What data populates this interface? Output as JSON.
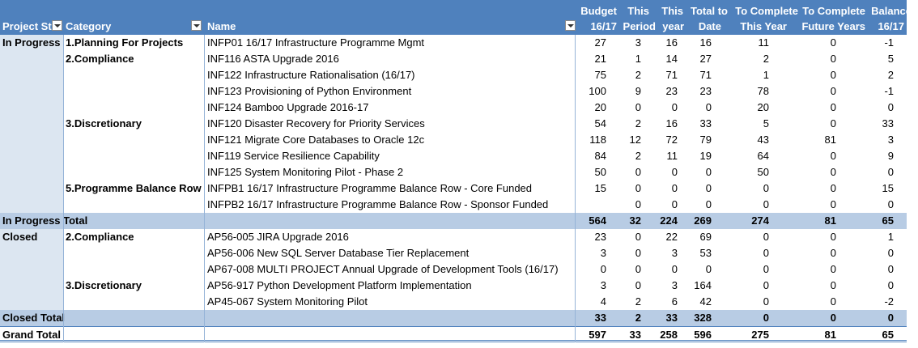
{
  "headers": {
    "status": "Project St",
    "category": "Category",
    "name": "Name",
    "budget": [
      "Budget",
      "16/17"
    ],
    "this_period": [
      "This",
      "Period"
    ],
    "this_year": [
      "This",
      "year"
    ],
    "total_to_date": [
      "Total to",
      "Date"
    ],
    "to_complete_this_year": [
      "To Complete",
      "This Year"
    ],
    "to_complete_future": [
      "To Complete",
      "Future Years"
    ],
    "balance": [
      "Balance",
      "16/17"
    ]
  },
  "rows": [
    {
      "status": "In Progress",
      "category": "1.Planning For Projects",
      "name": "INFP01 16/17 Infrastructure Programme Mgmt",
      "budget": "27",
      "period": "3",
      "year": "16",
      "todate": "16",
      "tc_year": "11",
      "tc_future": "0",
      "balance": "-1"
    },
    {
      "status": "",
      "category": "2.Compliance",
      "name": "INF116 ASTA Upgrade 2016",
      "budget": "21",
      "period": "1",
      "year": "14",
      "todate": "27",
      "tc_year": "2",
      "tc_future": "0",
      "balance": "5"
    },
    {
      "status": "",
      "category": "",
      "name": "INF122 Infrastructure Rationalisation (16/17)",
      "budget": "75",
      "period": "2",
      "year": "71",
      "todate": "71",
      "tc_year": "1",
      "tc_future": "0",
      "balance": "2"
    },
    {
      "status": "",
      "category": "",
      "name": "INF123 Provisioning of Python Environment",
      "budget": "100",
      "period": "9",
      "year": "23",
      "todate": "23",
      "tc_year": "78",
      "tc_future": "0",
      "balance": "-1"
    },
    {
      "status": "",
      "category": "",
      "name": "INF124 Bamboo Upgrade 2016-17",
      "budget": "20",
      "period": "0",
      "year": "0",
      "todate": "0",
      "tc_year": "20",
      "tc_future": "0",
      "balance": "0"
    },
    {
      "status": "",
      "category": "3.Discretionary",
      "name": "INF120 Disaster Recovery for Priority Services",
      "budget": "54",
      "period": "2",
      "year": "16",
      "todate": "33",
      "tc_year": "5",
      "tc_future": "0",
      "balance": "33"
    },
    {
      "status": "",
      "category": "",
      "name": "INF121 Migrate Core Databases to Oracle 12c",
      "budget": "118",
      "period": "12",
      "year": "72",
      "todate": "79",
      "tc_year": "43",
      "tc_future": "81",
      "balance": "3"
    },
    {
      "status": "",
      "category": "",
      "name": "INF119 Service Resilience Capability",
      "budget": "84",
      "period": "2",
      "year": "11",
      "todate": "19",
      "tc_year": "64",
      "tc_future": "0",
      "balance": "9"
    },
    {
      "status": "",
      "category": "",
      "name": "INF125 System Monitoring Pilot - Phase 2",
      "budget": "50",
      "period": "0",
      "year": "0",
      "todate": "0",
      "tc_year": "50",
      "tc_future": "0",
      "balance": "0"
    },
    {
      "status": "",
      "category": "5.Programme Balance Row",
      "name": "INFPB1 16/17 Infrastructure Programme Balance Row - Core Funded",
      "budget": "15",
      "period": "0",
      "year": "0",
      "todate": "0",
      "tc_year": "0",
      "tc_future": "0",
      "balance": "15"
    },
    {
      "status": "",
      "category": "",
      "name": "INFPB2 16/17 Infrastructure Programme Balance Row - Sponsor Funded",
      "budget": "",
      "period": "0",
      "year": "0",
      "todate": "0",
      "tc_year": "0",
      "tc_future": "0",
      "balance": "0"
    },
    {
      "total": true,
      "status": "In Progress Total",
      "category": "",
      "name": "",
      "budget": "564",
      "period": "32",
      "year": "224",
      "todate": "269",
      "tc_year": "274",
      "tc_future": "81",
      "balance": "65"
    },
    {
      "status": "Closed",
      "category": "2.Compliance",
      "name": "AP56-005 JIRA Upgrade 2016",
      "budget": "23",
      "period": "0",
      "year": "22",
      "todate": "69",
      "tc_year": "0",
      "tc_future": "0",
      "balance": "1"
    },
    {
      "status": "",
      "category": "",
      "name": "AP56-006 New SQL Server Database Tier Replacement",
      "budget": "3",
      "period": "0",
      "year": "3",
      "todate": "53",
      "tc_year": "0",
      "tc_future": "0",
      "balance": "0"
    },
    {
      "status": "",
      "category": "",
      "name": "AP67-008 MULTI PROJECT Annual Upgrade of Development Tools (16/17)",
      "budget": "0",
      "period": "0",
      "year": "0",
      "todate": "0",
      "tc_year": "0",
      "tc_future": "0",
      "balance": "0"
    },
    {
      "status": "",
      "category": "3.Discretionary",
      "name": "AP56-917 Python Development Platform Implementation",
      "budget": "3",
      "period": "0",
      "year": "3",
      "todate": "164",
      "tc_year": "0",
      "tc_future": "0",
      "balance": "0"
    },
    {
      "status": "",
      "category": "",
      "name": "AP45-067 System Monitoring Pilot",
      "budget": "4",
      "period": "2",
      "year": "6",
      "todate": "42",
      "tc_year": "0",
      "tc_future": "0",
      "balance": "-2"
    },
    {
      "total": true,
      "status": "Closed Total",
      "category": "",
      "name": "",
      "budget": "33",
      "period": "2",
      "year": "33",
      "todate": "328",
      "tc_year": "0",
      "tc_future": "0",
      "balance": "0"
    },
    {
      "grand": true,
      "status": "Grand Total",
      "category": "",
      "name": "",
      "budget": "597",
      "period": "33",
      "year": "258",
      "todate": "596",
      "tc_year": "275",
      "tc_future": "81",
      "balance": "65"
    }
  ],
  "colors": {
    "header": "#4f81bd",
    "status_column": "#dce6f1",
    "subtotal": "#b8cce4"
  }
}
